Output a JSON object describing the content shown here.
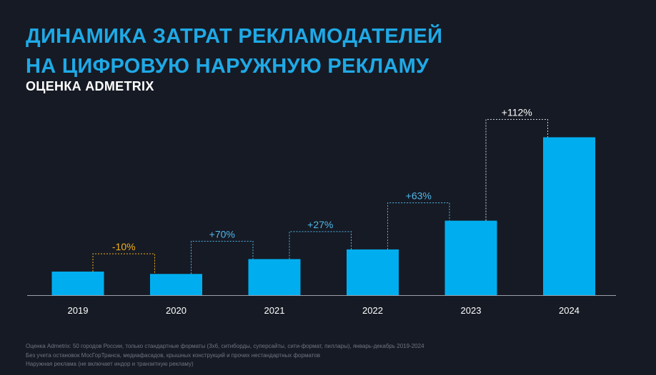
{
  "header": {
    "title_line1": "ДИНАМИКА ЗАТРАТ РЕКЛАМОДАТЕЛЕЙ",
    "title_line2": "НА ЦИФРОВУЮ НАРУЖНУЮ РЕКЛАМУ",
    "subtitle": "ОЦЕНКА ADMETRIX"
  },
  "colors": {
    "background": "#161a24",
    "bar": "#00aeef",
    "title": "#1fa9e6",
    "growth": "#4fb8ea",
    "decline": "#f2b01e",
    "highlight_label": "#ffffff",
    "axis": "#9aa0aa"
  },
  "chart_data": {
    "type": "bar",
    "title": "Динамика затрат рекламодателей на цифровую наружную рекламу",
    "xlabel": "",
    "ylabel": "",
    "categories": [
      "2019",
      "2020",
      "2021",
      "2022",
      "2023",
      "2024"
    ],
    "values": [
      10,
      9,
      15.3,
      19.4,
      31.6,
      67
    ],
    "ylim": [
      0,
      72
    ],
    "grid": false,
    "changes": [
      {
        "from": "2019",
        "to": "2020",
        "label": "-10%",
        "kind": "decline"
      },
      {
        "from": "2020",
        "to": "2021",
        "label": "+70%",
        "kind": "growth"
      },
      {
        "from": "2021",
        "to": "2022",
        "label": "+27%",
        "kind": "growth"
      },
      {
        "from": "2022",
        "to": "2023",
        "label": "+63%",
        "kind": "growth"
      },
      {
        "from": "2023",
        "to": "2024",
        "label": "+112%",
        "kind": "highlight"
      }
    ]
  },
  "footnotes": [
    "Оценка Admetrix: 50 городов России, только стандартные форматы (3х6, ситиборды, суперсайты, сити-формат, пиллары), январь-декабрь 2019-2024",
    "Без учета остановок МосГорТранса, медиафасадов, крышных конструкций и прочих нестандартных форматов",
    "Наружная реклама (не включает индор и транзитную рекламу)"
  ]
}
